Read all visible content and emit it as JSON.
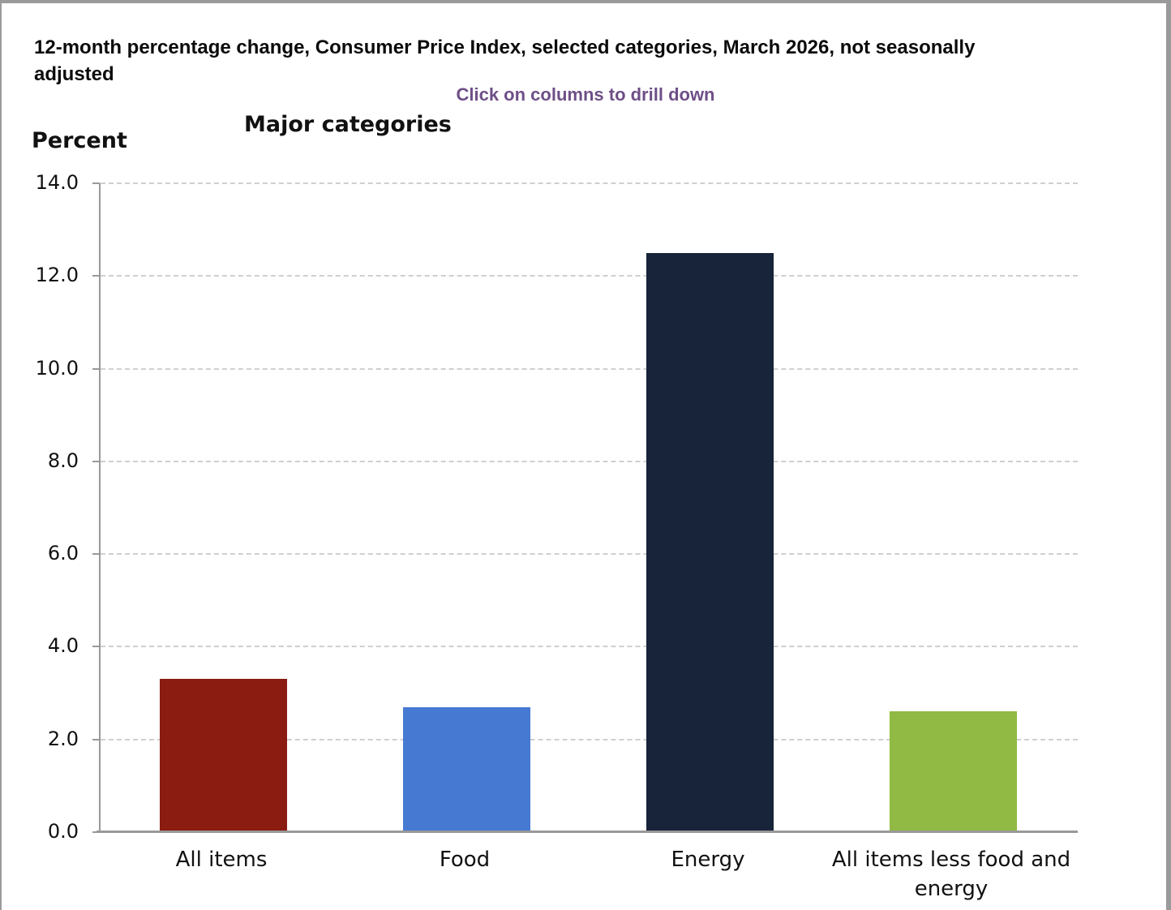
{
  "header": {
    "title": "12-month percentage change, Consumer Price Index, selected categories, March 2026, not seasonally adjusted",
    "subtitle": "Click on columns to drill down",
    "chart_title": "Major categories",
    "y_axis_title": "Percent"
  },
  "colors": {
    "subtitle_purple": "#6e4f87",
    "axis_gray": "#999999",
    "gridline_gray": "#cfcfcf"
  },
  "chart_data": {
    "type": "bar",
    "title": "Major categories",
    "xlabel": "",
    "ylabel": "Percent",
    "categories": [
      "All items",
      "Food",
      "Energy",
      "All items less food and energy"
    ],
    "values": [
      3.3,
      2.7,
      12.5,
      2.6
    ],
    "bar_colors": [
      "#8a1c12",
      "#4679d2",
      "#172439",
      "#90ba43"
    ],
    "ylim": [
      0,
      14
    ],
    "ytick_step": 2,
    "ytick_labels": [
      "0.0",
      "2.0",
      "4.0",
      "6.0",
      "8.0",
      "10.0",
      "12.0",
      "14.0"
    ],
    "grid": "horizontal-dashed",
    "legend": "none",
    "note": "Clickable columns (drill down)"
  }
}
